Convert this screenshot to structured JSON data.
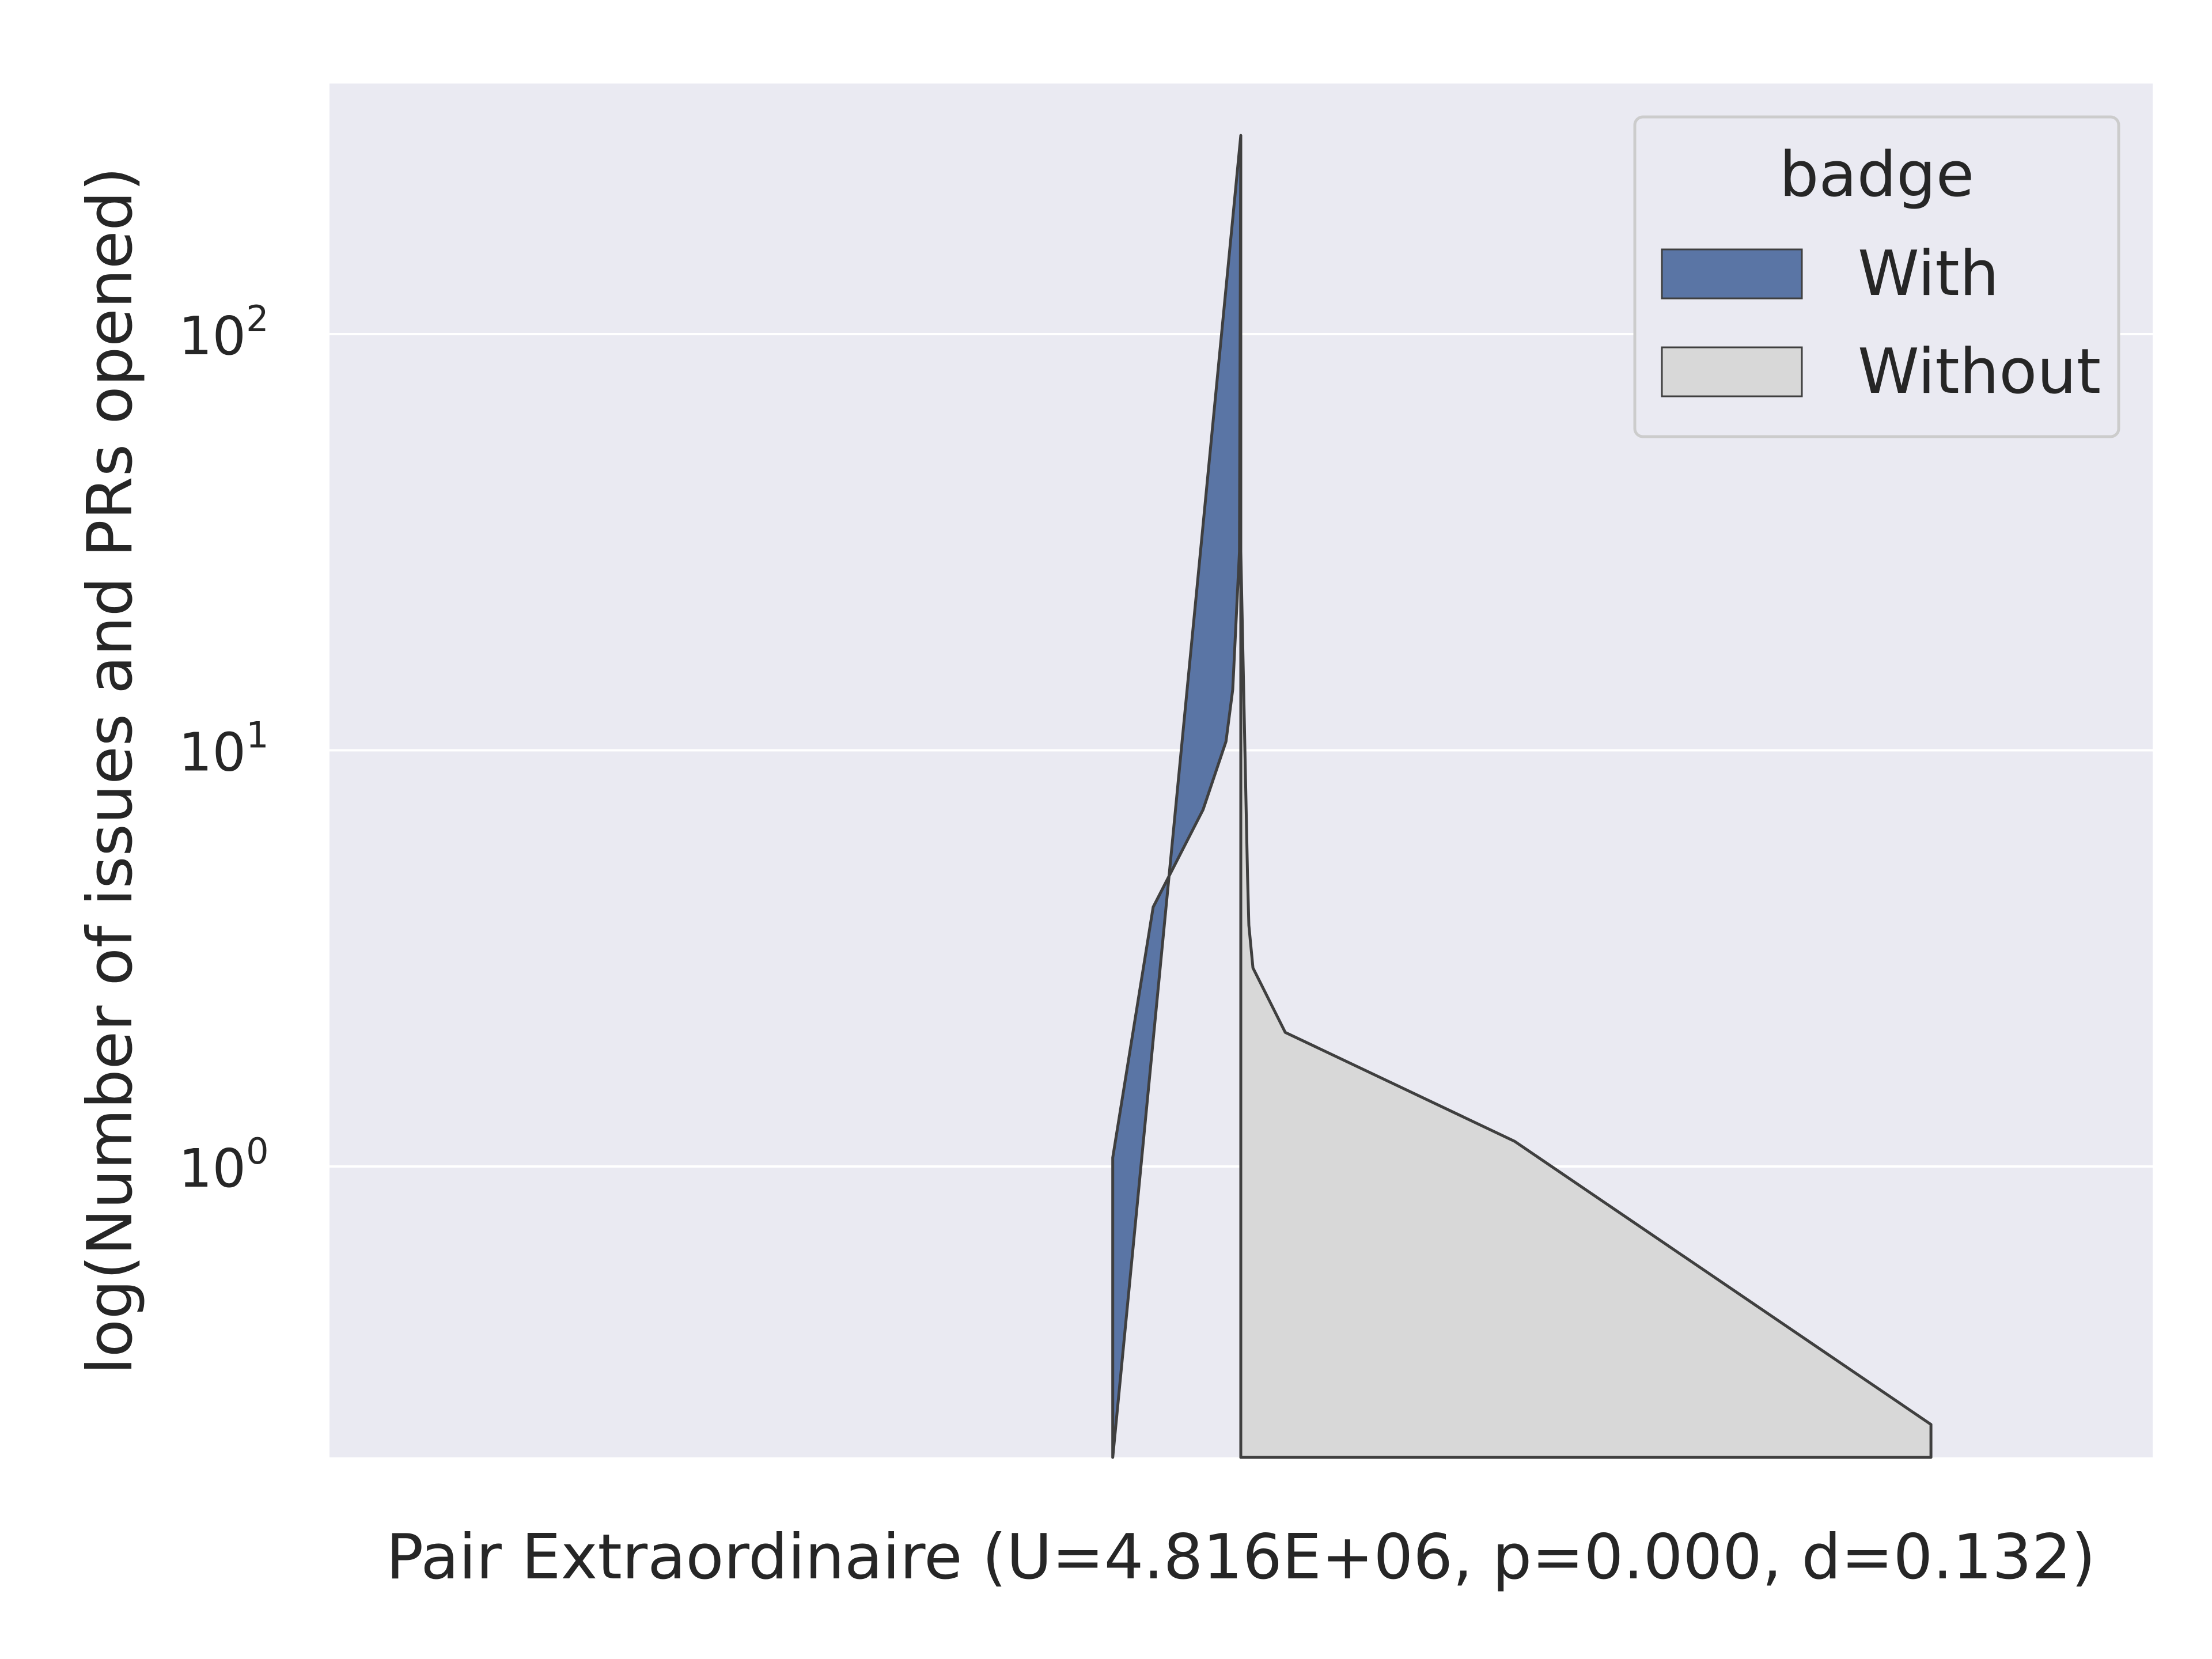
{
  "chart_data": {
    "type": "violin",
    "xlabel": "Pair Extraordinaire (U=4.816E+06, p=0.000, d=0.132)",
    "ylabel": "log(Number of issues and PRs opened)",
    "yscale": "log",
    "ylim": [
      0.2,
      400
    ],
    "yticks": [
      {
        "base": "10",
        "exp": "0",
        "value": 1
      },
      {
        "base": "10",
        "exp": "1",
        "value": 10
      },
      {
        "base": "10",
        "exp": "2",
        "value": 100
      }
    ],
    "grid": true,
    "legend": {
      "title": "badge",
      "position": "top-right",
      "entries": [
        {
          "label": "With",
          "color": "#5a75a5"
        },
        {
          "label": "Without",
          "color": "#d8d8d8"
        }
      ]
    },
    "series": [
      {
        "name": "With",
        "side": "left",
        "color": "#5a75a5",
        "density_profile": [
          {
            "y": 0.2,
            "width": 0.95
          },
          {
            "y": 1.05,
            "width": 0.95
          },
          {
            "y": 4.2,
            "width": 0.65
          },
          {
            "y": 7.2,
            "width": 0.28
          },
          {
            "y": 10.5,
            "width": 0.11
          },
          {
            "y": 14,
            "width": 0.06
          },
          {
            "y": 30,
            "width": 0.01
          },
          {
            "y": 300,
            "width": 0.0
          }
        ]
      },
      {
        "name": "Without",
        "side": "right",
        "color": "#d8d8d8",
        "density_profile": [
          {
            "y": 300,
            "width": 0.0
          },
          {
            "y": 30,
            "width": 0.0
          },
          {
            "y": 5,
            "width": 0.05
          },
          {
            "y": 3.8,
            "width": 0.06
          },
          {
            "y": 3.0,
            "width": 0.09
          },
          {
            "y": 2.1,
            "width": 0.33
          },
          {
            "y": 1.15,
            "width": 2.03
          },
          {
            "y": 0.24,
            "width": 5.12
          },
          {
            "y": 0.2,
            "width": 5.12
          }
        ]
      }
    ]
  },
  "colors": {
    "plot_background": "#eaeaf2",
    "grid": "#ffffff",
    "edge": "#3f3f3f",
    "text": "#262626"
  }
}
